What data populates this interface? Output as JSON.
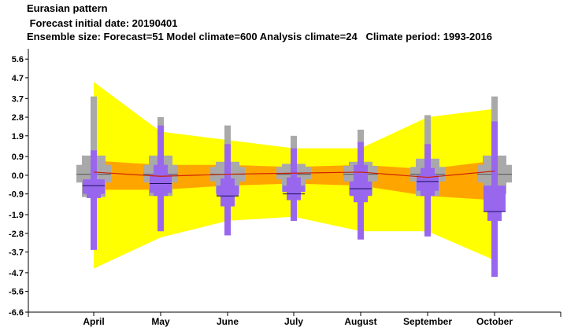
{
  "header": {
    "title": "Eurasian pattern",
    "forecast_date": " Forecast initial date: 20190401",
    "ensemble_info": "Ensemble size: Forecast=51 Model climate=600 Analysis climate=24   Climate period: 1993-2016"
  },
  "colors": {
    "outer_band": "#ffff00",
    "inner_band": "#ffa500",
    "climate_box": "#a9a9a9",
    "forecast_box": "#9966ee",
    "median_line": "#cc2200",
    "axis": "#000000"
  },
  "chart_data": {
    "type": "box",
    "categories": [
      "April",
      "May",
      "June",
      "July",
      "August",
      "September",
      "October"
    ],
    "ylim": [
      -6.6,
      6.1
    ],
    "yticks": [
      5.6,
      4.7,
      3.7,
      2.8,
      1.9,
      0.9,
      0.0,
      -0.9,
      -1.9,
      -2.8,
      -3.7,
      -4.7,
      -5.6,
      -6.6
    ],
    "ytick_labels": [
      "5.6",
      "4.7",
      "3.7",
      "2.8",
      "1.9",
      "0.9",
      "0.0",
      "-0.9",
      "-1.9",
      "-2.8",
      "-3.7",
      "-4.7",
      "-5.6",
      "-6.6"
    ],
    "analysis_band_outer": {
      "upper": [
        4.5,
        2.1,
        1.7,
        1.3,
        1.3,
        2.8,
        3.2
      ],
      "lower": [
        -4.5,
        -3.0,
        -2.2,
        -2.0,
        -2.7,
        -2.7,
        -4.1
      ]
    },
    "analysis_band_inner": {
      "upper": [
        0.7,
        0.5,
        0.5,
        0.4,
        0.5,
        0.3,
        0.7
      ],
      "lower": [
        -0.7,
        -0.7,
        -0.5,
        -0.4,
        -0.5,
        -1.0,
        -1.2
      ]
    },
    "analysis_median": [
      0.15,
      -0.05,
      0.05,
      0.1,
      0.15,
      -0.1,
      0.2
    ],
    "model_climate": {
      "min": [
        -3.5,
        -2.7,
        -2.3,
        -2.0,
        -2.2,
        -2.9,
        -3.7
      ],
      "p10": [
        -1.05,
        -1.0,
        -0.9,
        -0.8,
        -0.95,
        -1.0,
        -0.9
      ],
      "p25": [
        -0.35,
        -0.35,
        -0.3,
        -0.2,
        -0.3,
        -0.3,
        -0.35
      ],
      "median": [
        0.05,
        0.05,
        0.05,
        0.05,
        0.05,
        0.05,
        0.05
      ],
      "p75": [
        0.5,
        0.5,
        0.4,
        0.4,
        0.45,
        0.4,
        0.5
      ],
      "p90": [
        0.95,
        0.95,
        0.65,
        0.55,
        0.65,
        0.8,
        0.95
      ],
      "max": [
        3.8,
        2.8,
        2.4,
        1.9,
        2.2,
        2.9,
        3.8
      ]
    },
    "forecast": {
      "min": [
        -3.6,
        -2.7,
        -2.9,
        -2.2,
        -3.1,
        -2.95,
        -4.9
      ],
      "p10": [
        -1.1,
        -1.0,
        -1.5,
        -1.2,
        -1.3,
        -1.0,
        -2.2
      ],
      "p25": [
        -0.9,
        -0.85,
        -1.0,
        -0.8,
        -1.0,
        -0.75,
        -1.75
      ],
      "median": [
        -0.5,
        -0.4,
        -1.0,
        -0.9,
        -0.65,
        -0.3,
        -1.75
      ],
      "p75": [
        -0.2,
        0.05,
        -0.5,
        -0.5,
        -0.3,
        0.0,
        -0.5
      ],
      "p90": [
        -0.2,
        0.5,
        -0.15,
        -0.1,
        0.5,
        0.35,
        -0.5
      ],
      "max": [
        1.2,
        2.4,
        1.5,
        1.3,
        1.6,
        1.5,
        2.6
      ]
    }
  }
}
